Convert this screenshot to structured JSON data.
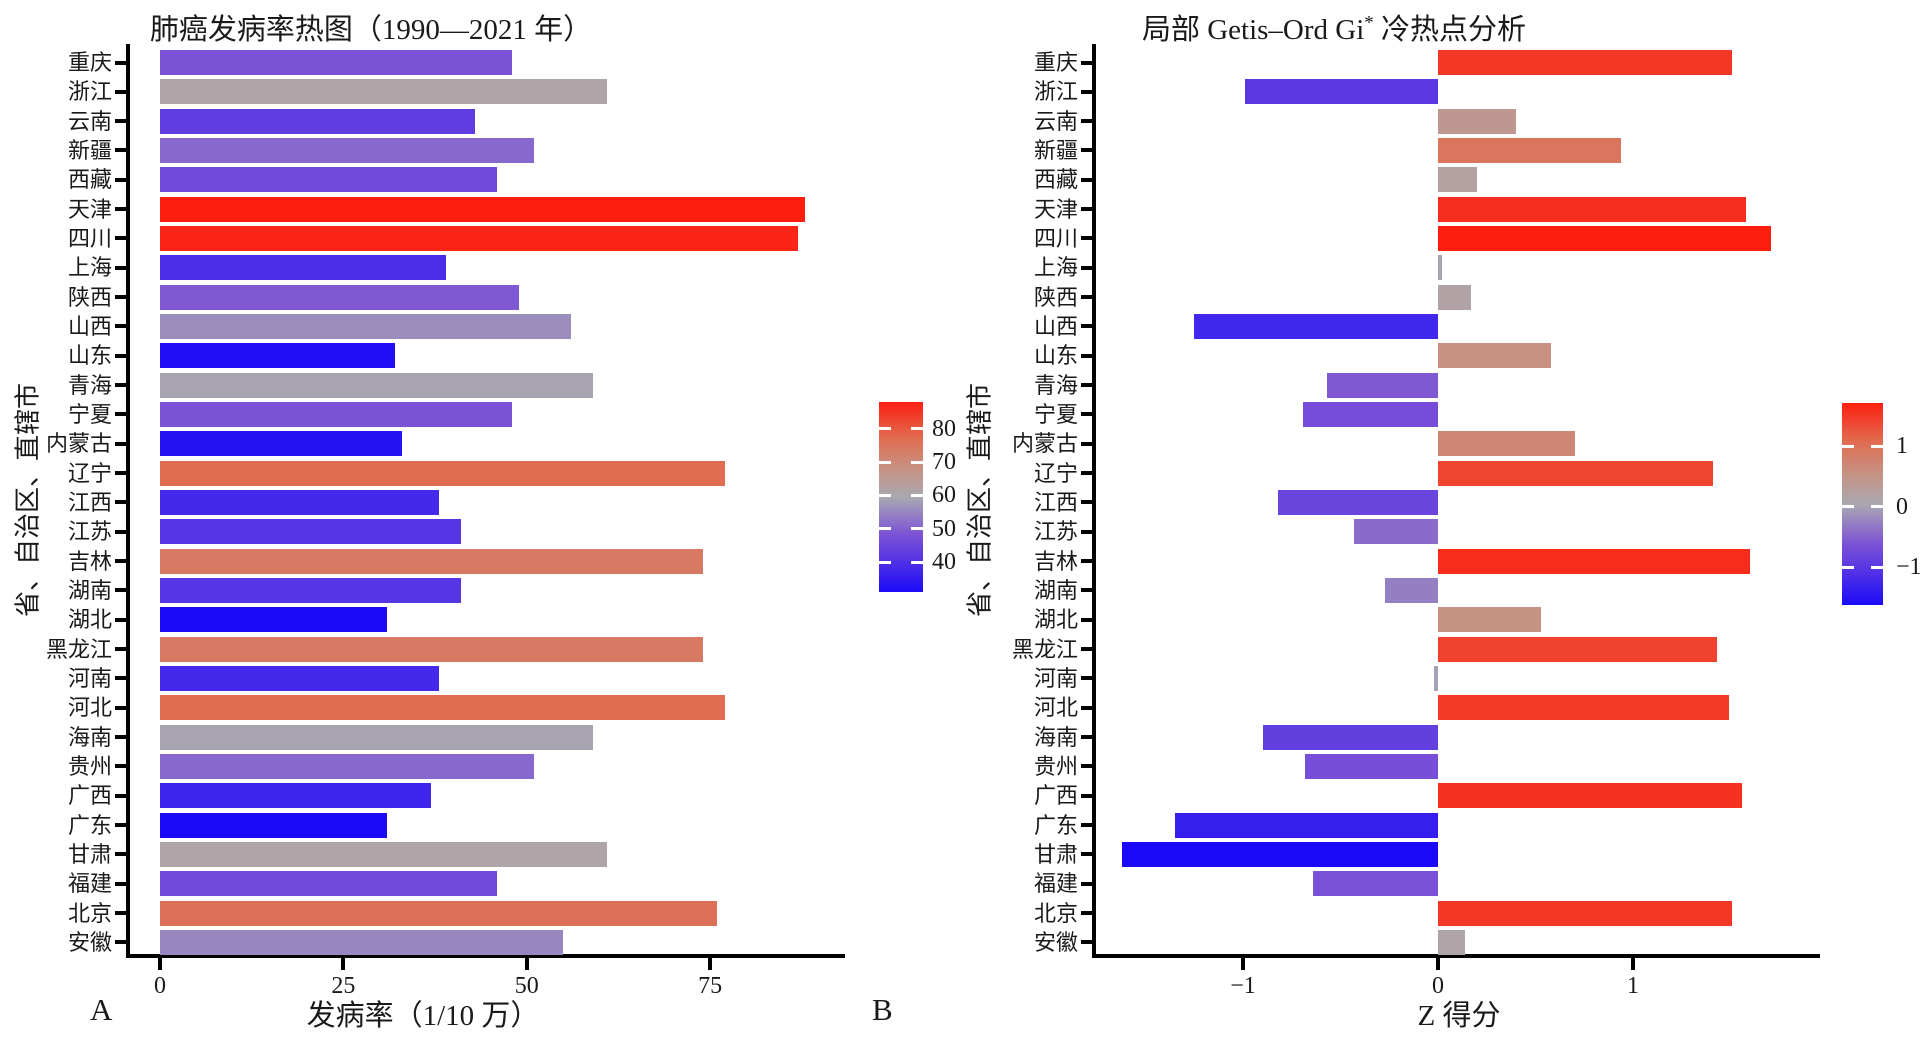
{
  "ui": {
    "background_color": "#ffffff",
    "axis_color": "#000000",
    "panel_a_corner": "A",
    "panel_b_corner": "B",
    "panel_b_title_prefix": "局部 Getis–Ord Gi",
    "panel_b_title_sup": "*",
    "panel_b_title_suffix": " 冷热点分析",
    "colormap_stops": [
      [
        0.0,
        "#1A0AF8"
      ],
      [
        0.14,
        "#4B2DE8"
      ],
      [
        0.3,
        "#7B52D6"
      ],
      [
        0.5,
        "#AAA8B0"
      ],
      [
        0.66,
        "#C89080"
      ],
      [
        0.82,
        "#E2694E"
      ],
      [
        1.0,
        "#FD1E10"
      ]
    ]
  },
  "chart_data": [
    {
      "type": "bar",
      "orientation": "horizontal",
      "title": "肺癌发病率热图（1990—2021 年）",
      "xlabel": "发病率（1/10 万）",
      "ylabel": "省、自治区、直辖市",
      "categories": [
        "重庆",
        "浙江",
        "云南",
        "新疆",
        "西藏",
        "天津",
        "四川",
        "上海",
        "陕西",
        "山西",
        "山东",
        "青海",
        "宁夏",
        "内蒙古",
        "辽宁",
        "江西",
        "江苏",
        "吉林",
        "湖南",
        "湖北",
        "黑龙江",
        "河南",
        "河北",
        "海南",
        "贵州",
        "广西",
        "广东",
        "甘肃",
        "福建",
        "北京",
        "安徽"
      ],
      "values": [
        48,
        61,
        43,
        51,
        46,
        88,
        87,
        39,
        49,
        56,
        32,
        59,
        48,
        33,
        77,
        38,
        41,
        74,
        41,
        31,
        74,
        38,
        77,
        59,
        51,
        37,
        31,
        61,
        46,
        76,
        55
      ],
      "x_ticks": [
        0,
        25,
        50,
        75
      ],
      "xlim": [
        0,
        93.4
      ],
      "grid": false,
      "colorbar": {
        "ticks": [
          80,
          70,
          60,
          50,
          40
        ],
        "domain": [
          31,
          88
        ]
      }
    },
    {
      "type": "bar",
      "orientation": "horizontal",
      "title": "局部 Getis–Ord Gi* 冷热点分析",
      "xlabel": "Z 得分",
      "ylabel": "省、自治区、直辖市",
      "categories": [
        "重庆",
        "浙江",
        "云南",
        "新疆",
        "西藏",
        "天津",
        "四川",
        "上海",
        "陕西",
        "山西",
        "山东",
        "青海",
        "宁夏",
        "内蒙古",
        "辽宁",
        "江西",
        "江苏",
        "吉林",
        "湖南",
        "湖北",
        "黑龙江",
        "河南",
        "河北",
        "海南",
        "贵州",
        "广西",
        "广东",
        "甘肃",
        "福建",
        "北京",
        "安徽"
      ],
      "values": [
        1.51,
        -0.99,
        0.4,
        0.94,
        0.2,
        1.58,
        1.71,
        0.02,
        0.17,
        -1.25,
        0.58,
        -0.57,
        -0.69,
        0.7,
        1.41,
        -0.82,
        -0.43,
        1.6,
        -0.27,
        0.53,
        1.43,
        -0.02,
        1.49,
        -0.9,
        -0.68,
        1.56,
        -1.35,
        -1.62,
        -0.64,
        1.51,
        0.14
      ],
      "x_ticks": [
        -1,
        0,
        1
      ],
      "xlim": [
        -1.75,
        1.96
      ],
      "grid": false,
      "colorbar": {
        "ticks": [
          1,
          0,
          -1
        ],
        "domain": [
          -1.62,
          1.71
        ]
      }
    }
  ]
}
